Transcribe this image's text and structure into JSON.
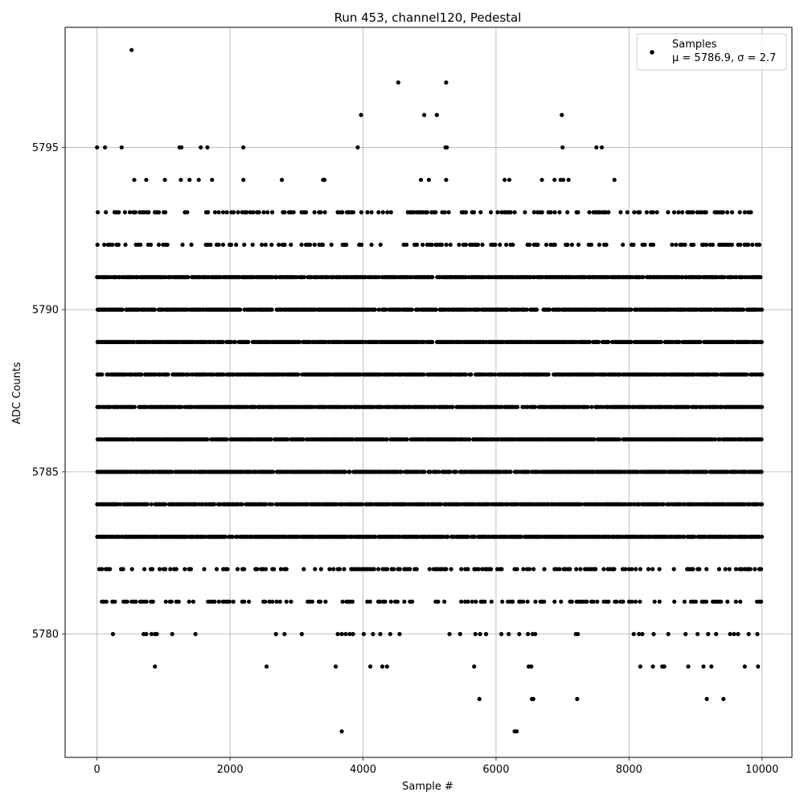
{
  "chart_data": {
    "type": "scatter",
    "title": "Run 453, channel120, Pedestal",
    "xlabel": "Sample #",
    "ylabel": "ADC Counts",
    "xlim": [
      -480,
      10450
    ],
    "ylim": [
      5776.2,
      5798.7
    ],
    "xticks": [
      0,
      2000,
      4000,
      6000,
      8000,
      10000
    ],
    "yticks": [
      5780,
      5785,
      5790,
      5795
    ],
    "grid": true,
    "legend": {
      "position": "top-right",
      "title": "Samples",
      "label": "μ = 5786.9, σ = 2.7"
    },
    "series": [
      {
        "name": "Samples",
        "color": "#000000",
        "x_range": [
          0,
          9999
        ],
        "dense_levels": [
          5783,
          5784,
          5785,
          5786,
          5787,
          5788,
          5789,
          5790,
          5791
        ],
        "medium_levels": [
          5781,
          5782,
          5792,
          5793
        ],
        "outliers": [
          {
            "x": 520,
            "y": 5798
          },
          {
            "x": 4530,
            "y": 5797
          },
          {
            "x": 5250,
            "y": 5797
          },
          {
            "x": 3970,
            "y": 5796
          },
          {
            "x": 4920,
            "y": 5796
          },
          {
            "x": 5110,
            "y": 5796
          },
          {
            "x": 6990,
            "y": 5796
          },
          {
            "x": 0,
            "y": 5795
          },
          {
            "x": 120,
            "y": 5795
          },
          {
            "x": 370,
            "y": 5795
          },
          {
            "x": 1240,
            "y": 5795
          },
          {
            "x": 1270,
            "y": 5795
          },
          {
            "x": 1560,
            "y": 5795
          },
          {
            "x": 1660,
            "y": 5795
          },
          {
            "x": 2200,
            "y": 5795
          },
          {
            "x": 3920,
            "y": 5795
          },
          {
            "x": 5240,
            "y": 5795
          },
          {
            "x": 5260,
            "y": 5795
          },
          {
            "x": 7000,
            "y": 5795
          },
          {
            "x": 7510,
            "y": 5795
          },
          {
            "x": 7590,
            "y": 5795
          },
          {
            "x": 560,
            "y": 5794
          },
          {
            "x": 740,
            "y": 5794
          },
          {
            "x": 1020,
            "y": 5794
          },
          {
            "x": 1260,
            "y": 5794
          },
          {
            "x": 1390,
            "y": 5794
          },
          {
            "x": 1530,
            "y": 5794
          },
          {
            "x": 1730,
            "y": 5794
          },
          {
            "x": 2200,
            "y": 5794
          },
          {
            "x": 2780,
            "y": 5794
          },
          {
            "x": 3400,
            "y": 5794
          },
          {
            "x": 3420,
            "y": 5794
          },
          {
            "x": 4870,
            "y": 5794
          },
          {
            "x": 4990,
            "y": 5794
          },
          {
            "x": 5250,
            "y": 5794
          },
          {
            "x": 6130,
            "y": 5794
          },
          {
            "x": 6200,
            "y": 5794
          },
          {
            "x": 6690,
            "y": 5794
          },
          {
            "x": 6880,
            "y": 5794
          },
          {
            "x": 6970,
            "y": 5794
          },
          {
            "x": 7010,
            "y": 5794
          },
          {
            "x": 7090,
            "y": 5794
          },
          {
            "x": 7780,
            "y": 5794
          },
          {
            "x": 240,
            "y": 5780
          },
          {
            "x": 700,
            "y": 5780
          },
          {
            "x": 740,
            "y": 5780
          },
          {
            "x": 820,
            "y": 5780
          },
          {
            "x": 870,
            "y": 5780
          },
          {
            "x": 900,
            "y": 5780
          },
          {
            "x": 1130,
            "y": 5780
          },
          {
            "x": 1480,
            "y": 5780
          },
          {
            "x": 2690,
            "y": 5780
          },
          {
            "x": 2820,
            "y": 5780
          },
          {
            "x": 3080,
            "y": 5780
          },
          {
            "x": 3620,
            "y": 5780
          },
          {
            "x": 3680,
            "y": 5780
          },
          {
            "x": 3740,
            "y": 5780
          },
          {
            "x": 3800,
            "y": 5780
          },
          {
            "x": 3850,
            "y": 5780
          },
          {
            "x": 4010,
            "y": 5780
          },
          {
            "x": 4150,
            "y": 5780
          },
          {
            "x": 4260,
            "y": 5780
          },
          {
            "x": 4410,
            "y": 5780
          },
          {
            "x": 4550,
            "y": 5780
          },
          {
            "x": 5300,
            "y": 5780
          },
          {
            "x": 5460,
            "y": 5780
          },
          {
            "x": 5690,
            "y": 5780
          },
          {
            "x": 5760,
            "y": 5780
          },
          {
            "x": 5850,
            "y": 5780
          },
          {
            "x": 6080,
            "y": 5780
          },
          {
            "x": 6190,
            "y": 5780
          },
          {
            "x": 6350,
            "y": 5780
          },
          {
            "x": 6480,
            "y": 5780
          },
          {
            "x": 6550,
            "y": 5780
          },
          {
            "x": 6590,
            "y": 5780
          },
          {
            "x": 7200,
            "y": 5780
          },
          {
            "x": 7230,
            "y": 5780
          },
          {
            "x": 8070,
            "y": 5780
          },
          {
            "x": 8150,
            "y": 5780
          },
          {
            "x": 8200,
            "y": 5780
          },
          {
            "x": 8370,
            "y": 5780
          },
          {
            "x": 8590,
            "y": 5780
          },
          {
            "x": 8850,
            "y": 5780
          },
          {
            "x": 9030,
            "y": 5780
          },
          {
            "x": 9190,
            "y": 5780
          },
          {
            "x": 9310,
            "y": 5780
          },
          {
            "x": 9520,
            "y": 5780
          },
          {
            "x": 9580,
            "y": 5780
          },
          {
            "x": 9640,
            "y": 5780
          },
          {
            "x": 9800,
            "y": 5780
          },
          {
            "x": 9930,
            "y": 5780
          },
          {
            "x": 870,
            "y": 5779
          },
          {
            "x": 2550,
            "y": 5779
          },
          {
            "x": 3590,
            "y": 5779
          },
          {
            "x": 4110,
            "y": 5779
          },
          {
            "x": 4290,
            "y": 5779
          },
          {
            "x": 4360,
            "y": 5779
          },
          {
            "x": 5670,
            "y": 5779
          },
          {
            "x": 6490,
            "y": 5779
          },
          {
            "x": 6530,
            "y": 5779
          },
          {
            "x": 8170,
            "y": 5779
          },
          {
            "x": 8360,
            "y": 5779
          },
          {
            "x": 8500,
            "y": 5779
          },
          {
            "x": 8530,
            "y": 5779
          },
          {
            "x": 8890,
            "y": 5779
          },
          {
            "x": 9120,
            "y": 5779
          },
          {
            "x": 9240,
            "y": 5779
          },
          {
            "x": 9740,
            "y": 5779
          },
          {
            "x": 9940,
            "y": 5779
          },
          {
            "x": 5750,
            "y": 5778
          },
          {
            "x": 6540,
            "y": 5778
          },
          {
            "x": 6560,
            "y": 5778
          },
          {
            "x": 7220,
            "y": 5778
          },
          {
            "x": 9170,
            "y": 5778
          },
          {
            "x": 9420,
            "y": 5778
          },
          {
            "x": 3680,
            "y": 5777
          },
          {
            "x": 6280,
            "y": 5777
          },
          {
            "x": 6310,
            "y": 5777
          }
        ]
      }
    ]
  }
}
